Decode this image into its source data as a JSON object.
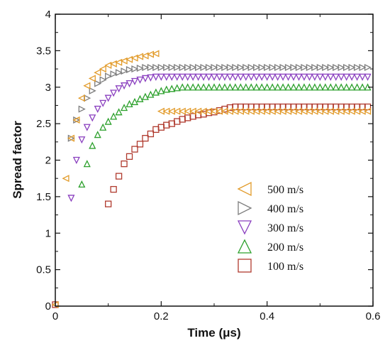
{
  "chart_data": {
    "type": "scatter",
    "xlabel": "Time (μs)",
    "ylabel": "Spread factor",
    "xlim": [
      0,
      0.6
    ],
    "ylim": [
      0,
      4
    ],
    "x_ticks": [
      "0",
      "0.2",
      "0.4",
      "0.6"
    ],
    "y_ticks": [
      "0",
      "0.5",
      "1",
      "1.5",
      "2",
      "2.5",
      "3",
      "3.5",
      "4"
    ],
    "grid": false,
    "legend_position": "bottom-right",
    "series": [
      {
        "name": "500 m/s",
        "marker": "triangle-left",
        "color": "#e29b2a",
        "points": [
          [
            0,
            0.02
          ],
          [
            0.02,
            1.75
          ],
          [
            0.03,
            2.3
          ],
          [
            0.04,
            2.55
          ],
          [
            0.05,
            2.85
          ],
          [
            0.06,
            3.02
          ],
          [
            0.07,
            3.12
          ],
          [
            0.08,
            3.2
          ],
          [
            0.09,
            3.25
          ],
          [
            0.1,
            3.3
          ],
          [
            0.11,
            3.32
          ],
          [
            0.12,
            3.34
          ],
          [
            0.13,
            3.36
          ],
          [
            0.14,
            3.38
          ],
          [
            0.15,
            3.4
          ],
          [
            0.16,
            3.42
          ],
          [
            0.17,
            3.43
          ],
          [
            0.18,
            3.45
          ],
          [
            0.19,
            3.46
          ],
          [
            0.2,
            2.67
          ],
          [
            0.21,
            2.67
          ],
          [
            0.22,
            2.67
          ],
          [
            0.23,
            2.67
          ],
          [
            0.24,
            2.67
          ],
          [
            0.25,
            2.67
          ],
          [
            0.26,
            2.67
          ],
          [
            0.27,
            2.67
          ],
          [
            0.28,
            2.67
          ],
          [
            0.29,
            2.67
          ],
          [
            0.3,
            2.67
          ],
          [
            0.31,
            2.67
          ],
          [
            0.32,
            2.67
          ],
          [
            0.33,
            2.67
          ],
          [
            0.34,
            2.67
          ],
          [
            0.35,
            2.67
          ],
          [
            0.36,
            2.67
          ],
          [
            0.37,
            2.67
          ],
          [
            0.38,
            2.67
          ],
          [
            0.39,
            2.67
          ],
          [
            0.4,
            2.67
          ],
          [
            0.41,
            2.67
          ],
          [
            0.42,
            2.67
          ],
          [
            0.43,
            2.67
          ],
          [
            0.44,
            2.67
          ],
          [
            0.45,
            2.67
          ],
          [
            0.46,
            2.67
          ],
          [
            0.47,
            2.67
          ],
          [
            0.48,
            2.67
          ],
          [
            0.49,
            2.67
          ],
          [
            0.5,
            2.67
          ],
          [
            0.51,
            2.67
          ],
          [
            0.52,
            2.67
          ],
          [
            0.53,
            2.67
          ],
          [
            0.54,
            2.67
          ],
          [
            0.55,
            2.67
          ],
          [
            0.56,
            2.67
          ],
          [
            0.57,
            2.67
          ],
          [
            0.58,
            2.67
          ],
          [
            0.59,
            2.67
          ]
        ]
      },
      {
        "name": "400 m/s",
        "marker": "triangle-right",
        "color": "#7d7d7d",
        "points": [
          [
            0.03,
            2.3
          ],
          [
            0.04,
            2.55
          ],
          [
            0.05,
            2.7
          ],
          [
            0.06,
            2.85
          ],
          [
            0.07,
            2.95
          ],
          [
            0.08,
            3.05
          ],
          [
            0.09,
            3.1
          ],
          [
            0.1,
            3.15
          ],
          [
            0.11,
            3.18
          ],
          [
            0.12,
            3.2
          ],
          [
            0.13,
            3.22
          ],
          [
            0.14,
            3.24
          ],
          [
            0.15,
            3.25
          ],
          [
            0.16,
            3.26
          ],
          [
            0.17,
            3.27
          ],
          [
            0.18,
            3.27
          ],
          [
            0.19,
            3.27
          ],
          [
            0.2,
            3.27
          ],
          [
            0.21,
            3.27
          ],
          [
            0.22,
            3.27
          ],
          [
            0.23,
            3.27
          ],
          [
            0.24,
            3.27
          ],
          [
            0.25,
            3.27
          ],
          [
            0.26,
            3.27
          ],
          [
            0.27,
            3.27
          ],
          [
            0.28,
            3.27
          ],
          [
            0.29,
            3.27
          ],
          [
            0.3,
            3.27
          ],
          [
            0.31,
            3.27
          ],
          [
            0.32,
            3.27
          ],
          [
            0.33,
            3.27
          ],
          [
            0.34,
            3.27
          ],
          [
            0.35,
            3.27
          ],
          [
            0.36,
            3.27
          ],
          [
            0.37,
            3.27
          ],
          [
            0.38,
            3.27
          ],
          [
            0.39,
            3.27
          ],
          [
            0.4,
            3.27
          ],
          [
            0.41,
            3.27
          ],
          [
            0.42,
            3.27
          ],
          [
            0.43,
            3.27
          ],
          [
            0.44,
            3.27
          ],
          [
            0.45,
            3.27
          ],
          [
            0.46,
            3.27
          ],
          [
            0.47,
            3.27
          ],
          [
            0.48,
            3.27
          ],
          [
            0.49,
            3.27
          ],
          [
            0.5,
            3.27
          ],
          [
            0.51,
            3.27
          ],
          [
            0.52,
            3.27
          ],
          [
            0.53,
            3.27
          ],
          [
            0.54,
            3.27
          ],
          [
            0.55,
            3.27
          ],
          [
            0.56,
            3.27
          ],
          [
            0.57,
            3.27
          ],
          [
            0.58,
            3.27
          ],
          [
            0.59,
            3.27
          ]
        ]
      },
      {
        "name": "300 m/s",
        "marker": "triangle-down",
        "color": "#8a3fbf",
        "points": [
          [
            0.03,
            1.48
          ],
          [
            0.04,
            2.0
          ],
          [
            0.05,
            2.28
          ],
          [
            0.06,
            2.45
          ],
          [
            0.07,
            2.58
          ],
          [
            0.08,
            2.7
          ],
          [
            0.09,
            2.78
          ],
          [
            0.1,
            2.85
          ],
          [
            0.11,
            2.92
          ],
          [
            0.12,
            2.98
          ],
          [
            0.13,
            3.02
          ],
          [
            0.14,
            3.05
          ],
          [
            0.15,
            3.08
          ],
          [
            0.16,
            3.1
          ],
          [
            0.17,
            3.12
          ],
          [
            0.18,
            3.13
          ],
          [
            0.19,
            3.14
          ],
          [
            0.2,
            3.14
          ],
          [
            0.21,
            3.14
          ],
          [
            0.22,
            3.14
          ],
          [
            0.23,
            3.14
          ],
          [
            0.24,
            3.14
          ],
          [
            0.25,
            3.14
          ],
          [
            0.26,
            3.14
          ],
          [
            0.27,
            3.14
          ],
          [
            0.28,
            3.14
          ],
          [
            0.29,
            3.14
          ],
          [
            0.3,
            3.14
          ],
          [
            0.31,
            3.14
          ],
          [
            0.32,
            3.14
          ],
          [
            0.33,
            3.14
          ],
          [
            0.34,
            3.14
          ],
          [
            0.35,
            3.14
          ],
          [
            0.36,
            3.14
          ],
          [
            0.37,
            3.14
          ],
          [
            0.38,
            3.14
          ],
          [
            0.39,
            3.14
          ],
          [
            0.4,
            3.14
          ],
          [
            0.41,
            3.14
          ],
          [
            0.42,
            3.14
          ],
          [
            0.43,
            3.14
          ],
          [
            0.44,
            3.14
          ],
          [
            0.45,
            3.14
          ],
          [
            0.46,
            3.14
          ],
          [
            0.47,
            3.14
          ],
          [
            0.48,
            3.14
          ],
          [
            0.49,
            3.14
          ],
          [
            0.5,
            3.14
          ],
          [
            0.51,
            3.14
          ],
          [
            0.52,
            3.14
          ],
          [
            0.53,
            3.14
          ],
          [
            0.54,
            3.14
          ],
          [
            0.55,
            3.14
          ],
          [
            0.56,
            3.14
          ],
          [
            0.57,
            3.14
          ],
          [
            0.58,
            3.14
          ],
          [
            0.59,
            3.14
          ]
        ]
      },
      {
        "name": "200 m/s",
        "marker": "triangle-up",
        "color": "#2ca02c",
        "points": [
          [
            0.05,
            1.67
          ],
          [
            0.06,
            1.95
          ],
          [
            0.07,
            2.2
          ],
          [
            0.08,
            2.35
          ],
          [
            0.09,
            2.45
          ],
          [
            0.1,
            2.53
          ],
          [
            0.11,
            2.6
          ],
          [
            0.12,
            2.66
          ],
          [
            0.13,
            2.72
          ],
          [
            0.14,
            2.77
          ],
          [
            0.15,
            2.8
          ],
          [
            0.16,
            2.84
          ],
          [
            0.17,
            2.87
          ],
          [
            0.18,
            2.9
          ],
          [
            0.19,
            2.93
          ],
          [
            0.2,
            2.95
          ],
          [
            0.21,
            2.97
          ],
          [
            0.22,
            2.98
          ],
          [
            0.23,
            2.99
          ],
          [
            0.24,
            3.0
          ],
          [
            0.25,
            3.0
          ],
          [
            0.26,
            3.0
          ],
          [
            0.27,
            3.0
          ],
          [
            0.28,
            3.0
          ],
          [
            0.29,
            3.0
          ],
          [
            0.3,
            3.0
          ],
          [
            0.31,
            3.0
          ],
          [
            0.32,
            3.0
          ],
          [
            0.33,
            3.0
          ],
          [
            0.34,
            3.0
          ],
          [
            0.35,
            3.0
          ],
          [
            0.36,
            3.0
          ],
          [
            0.37,
            3.0
          ],
          [
            0.38,
            3.0
          ],
          [
            0.39,
            3.0
          ],
          [
            0.4,
            3.0
          ],
          [
            0.41,
            3.0
          ],
          [
            0.42,
            3.0
          ],
          [
            0.43,
            3.0
          ],
          [
            0.44,
            3.0
          ],
          [
            0.45,
            3.0
          ],
          [
            0.46,
            3.0
          ],
          [
            0.47,
            3.0
          ],
          [
            0.48,
            3.0
          ],
          [
            0.49,
            3.0
          ],
          [
            0.5,
            3.0
          ],
          [
            0.51,
            3.0
          ],
          [
            0.52,
            3.0
          ],
          [
            0.53,
            3.0
          ],
          [
            0.54,
            3.0
          ],
          [
            0.55,
            3.0
          ],
          [
            0.56,
            3.0
          ],
          [
            0.57,
            3.0
          ],
          [
            0.58,
            3.0
          ],
          [
            0.59,
            3.0
          ]
        ]
      },
      {
        "name": "100 m/s",
        "marker": "square",
        "color": "#b03a2e",
        "points": [
          [
            0,
            0.02
          ],
          [
            0.1,
            1.4
          ],
          [
            0.11,
            1.6
          ],
          [
            0.12,
            1.78
          ],
          [
            0.13,
            1.95
          ],
          [
            0.14,
            2.05
          ],
          [
            0.15,
            2.15
          ],
          [
            0.16,
            2.22
          ],
          [
            0.17,
            2.3
          ],
          [
            0.18,
            2.36
          ],
          [
            0.19,
            2.42
          ],
          [
            0.2,
            2.45
          ],
          [
            0.21,
            2.48
          ],
          [
            0.22,
            2.5
          ],
          [
            0.23,
            2.53
          ],
          [
            0.24,
            2.56
          ],
          [
            0.25,
            2.58
          ],
          [
            0.26,
            2.6
          ],
          [
            0.27,
            2.62
          ],
          [
            0.28,
            2.63
          ],
          [
            0.29,
            2.65
          ],
          [
            0.3,
            2.66
          ],
          [
            0.31,
            2.68
          ],
          [
            0.32,
            2.7
          ],
          [
            0.33,
            2.72
          ],
          [
            0.34,
            2.73
          ],
          [
            0.35,
            2.73
          ],
          [
            0.36,
            2.73
          ],
          [
            0.37,
            2.73
          ],
          [
            0.38,
            2.73
          ],
          [
            0.39,
            2.73
          ],
          [
            0.4,
            2.73
          ],
          [
            0.41,
            2.73
          ],
          [
            0.42,
            2.73
          ],
          [
            0.43,
            2.73
          ],
          [
            0.44,
            2.73
          ],
          [
            0.45,
            2.73
          ],
          [
            0.46,
            2.73
          ],
          [
            0.47,
            2.73
          ],
          [
            0.48,
            2.73
          ],
          [
            0.49,
            2.73
          ],
          [
            0.5,
            2.73
          ],
          [
            0.51,
            2.73
          ],
          [
            0.52,
            2.73
          ],
          [
            0.53,
            2.73
          ],
          [
            0.54,
            2.73
          ],
          [
            0.55,
            2.73
          ],
          [
            0.56,
            2.73
          ],
          [
            0.57,
            2.73
          ],
          [
            0.58,
            2.73
          ],
          [
            0.59,
            2.73
          ]
        ]
      }
    ]
  }
}
